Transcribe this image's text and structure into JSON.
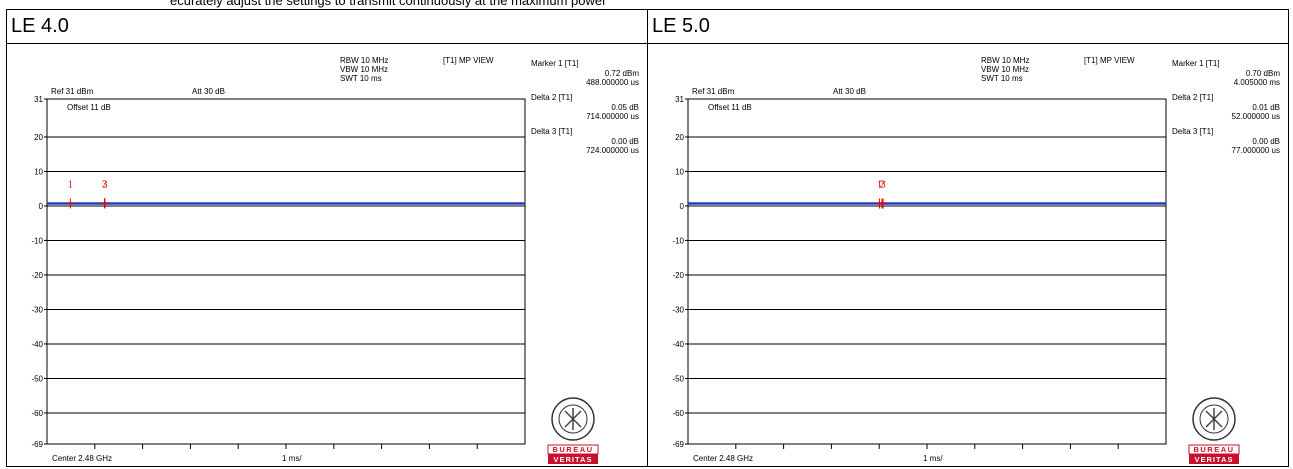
{
  "page": {
    "top_text": "ecurately adjust the settings to transmit continuously at the maximum power"
  },
  "panels": [
    {
      "title": "LE 4.0",
      "instrument": {
        "ref": "Ref 31 dBm",
        "att": "Att  30 dB",
        "rbw": "RBW 10 MHz",
        "vbw": "VBW 10 MHz",
        "swt": "SWT 10 ms",
        "trace_mode": "[T1] MP VIEW",
        "offset": "Offset 11 dB",
        "center": "Center 2.48 GHz",
        "span_per_div": "1 ms/"
      },
      "marker_readouts": [
        {
          "label": "Marker 1 [T1]",
          "level": "0.72 dBm",
          "time": "488.000000 us"
        },
        {
          "label": "Delta 2 [T1]",
          "level": "0.05 dB",
          "time": "714.000000 us"
        },
        {
          "label": "Delta 3 [T1]",
          "level": "0.00 dB",
          "time": "724.000000 us"
        }
      ],
      "logo": {
        "top": "BUREAU",
        "bottom": "VERITAS",
        "seal_text": "BUREAU VERITAS 1828"
      }
    },
    {
      "title": "LE 5.0",
      "instrument": {
        "ref": "Ref 31 dBm",
        "att": "Att  30 dB",
        "rbw": "RBW 10 MHz",
        "vbw": "VBW 10 MHz",
        "swt": "SWT 10 ms",
        "trace_mode": "[T1] MP VIEW",
        "offset": "Offset 11 dB",
        "center": "Center 2.48 GHz",
        "span_per_div": "1 ms/"
      },
      "marker_readouts": [
        {
          "label": "Marker 1 [T1]",
          "level": "0.70 dBm",
          "time": "4.005000 ms"
        },
        {
          "label": "Delta 2 [T1]",
          "level": "0.01 dB",
          "time": "52.000000 us"
        },
        {
          "label": "Delta 3 [T1]",
          "level": "0.00 dB",
          "time": "77.000000 us"
        }
      ],
      "logo": {
        "top": "BUREAU",
        "bottom": "VERITAS",
        "seal_text": "BUREAU VERITAS 1828"
      }
    }
  ],
  "chart_data": [
    {
      "type": "line",
      "title": "LE 4.0",
      "xlabel": "",
      "ylabel": "",
      "xlim": [
        0,
        10
      ],
      "ylim": [
        -69,
        31
      ],
      "x_unit": "ms",
      "y_unit": "dBm",
      "ytick_labels": [
        "31",
        "20",
        "10",
        "0",
        "-10",
        "-20",
        "-30",
        "-40",
        "-50",
        "-60",
        "-69"
      ],
      "grid": "horizontal",
      "series": [
        {
          "x": [
            0,
            10
          ],
          "y": [
            0.7,
            0.7
          ],
          "color": "#1f3fbf"
        }
      ],
      "markers": [
        {
          "label": "1",
          "x": 0.488,
          "y": 0.72
        },
        {
          "label": "2",
          "x": 1.202,
          "y": 0.77
        },
        {
          "label": "3",
          "x": 1.212,
          "y": 0.72
        }
      ],
      "marker_color": "#e00000"
    },
    {
      "type": "line",
      "title": "LE 5.0",
      "xlabel": "",
      "ylabel": "",
      "xlim": [
        0,
        10
      ],
      "ylim": [
        -69,
        31
      ],
      "x_unit": "ms",
      "y_unit": "dBm",
      "ytick_labels": [
        "31",
        "20",
        "10",
        "0",
        "-10",
        "-20",
        "-30",
        "-40",
        "-50",
        "-60",
        "-69"
      ],
      "grid": "horizontal",
      "series": [
        {
          "x": [
            0,
            10
          ],
          "y": [
            0.7,
            0.7
          ],
          "color": "#1f3fbf"
        }
      ],
      "markers": [
        {
          "label": "1",
          "x": 4.005,
          "y": 0.7
        },
        {
          "label": "2",
          "x": 4.057,
          "y": 0.71
        },
        {
          "label": "3",
          "x": 4.082,
          "y": 0.7
        }
      ],
      "marker_color": "#e00000"
    }
  ]
}
